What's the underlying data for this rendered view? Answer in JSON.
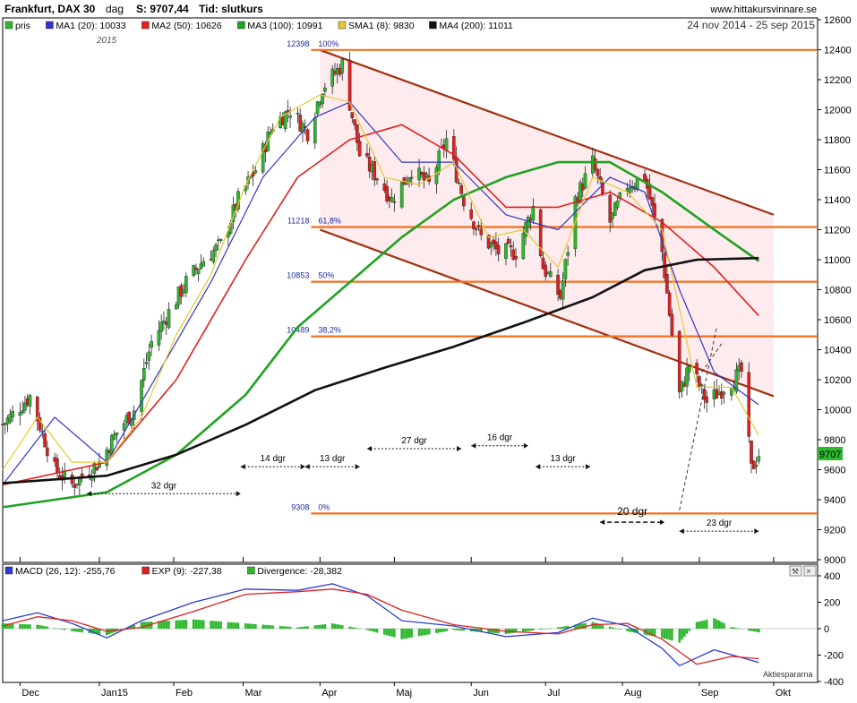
{
  "header": {
    "instrument": "Frankfurt, DAX 30",
    "interval": "dag",
    "last_label": "S: 9707,44",
    "time_label": "Tid: slutkurs",
    "site": "www.hittakursvinnare.se",
    "date_range": "24 nov 2014 - 25 sep 2015",
    "year_label": "2015",
    "price_tag": "9707",
    "footer_source": "Aktiespararna"
  },
  "colors": {
    "price_up": "#2db82d",
    "price_down": "#e02020",
    "ma1": "#3333cc",
    "ma2": "#e02020",
    "ma3": "#1fa21f",
    "sma1": "#e8c830",
    "ma4": "#111111",
    "fib": "#f07020",
    "channel": "#a03010",
    "channel_fill": "#fde8ea",
    "macd": "#2a3ccf",
    "exp": "#e02020",
    "divergence": "#2db82d"
  },
  "legend": {
    "items": [
      {
        "label": "pris",
        "color": "#2db82d"
      },
      {
        "label": "MA1 (20): 10033",
        "color": "#3333cc"
      },
      {
        "label": "MA2 (50): 10626",
        "color": "#e02020"
      },
      {
        "label": "MA3 (100): 10991",
        "color": "#1fa21f"
      },
      {
        "label": "SMA1 (8): 9830",
        "color": "#e8c830"
      },
      {
        "label": "MA4 (200): 11011",
        "color": "#111111"
      }
    ]
  },
  "chart_data": [
    {
      "type": "line",
      "title": "Frankfurt, DAX 30 - dag",
      "x_ticks": [
        "Dec",
        "Jan15",
        "Feb",
        "Mar",
        "Apr",
        "Maj",
        "Jun",
        "Jul",
        "Aug",
        "Sep",
        "Okt"
      ],
      "y_ticks": [
        9000,
        9200,
        9400,
        9600,
        9800,
        10000,
        10200,
        10400,
        10600,
        10800,
        11000,
        11200,
        11400,
        11600,
        11800,
        12000,
        12200,
        12400,
        12600
      ],
      "ylim": [
        9000,
        12600
      ],
      "x_range": [
        "2014-11-24",
        "2015-10-05"
      ],
      "series": [
        {
          "name": "pris",
          "x": [
            "2014-11-24",
            "2014-12-05",
            "2014-12-15",
            "2014-12-22",
            "2015-01-02",
            "2015-01-09",
            "2015-01-16",
            "2015-01-23",
            "2015-01-30",
            "2015-02-06",
            "2015-02-13",
            "2015-02-20",
            "2015-02-27",
            "2015-03-06",
            "2015-03-13",
            "2015-03-20",
            "2015-03-27",
            "2015-04-02",
            "2015-04-10",
            "2015-04-17",
            "2015-04-24",
            "2015-04-30",
            "2015-05-08",
            "2015-05-15",
            "2015-05-22",
            "2015-05-29",
            "2015-06-05",
            "2015-06-12",
            "2015-06-19",
            "2015-06-26",
            "2015-06-30",
            "2015-07-07",
            "2015-07-13",
            "2015-07-20",
            "2015-07-27",
            "2015-08-03",
            "2015-08-10",
            "2015-08-17",
            "2015-08-21",
            "2015-08-24",
            "2015-08-28",
            "2015-09-04",
            "2015-09-11",
            "2015-09-18",
            "2015-09-22",
            "2015-09-25"
          ],
          "values": [
            9900,
            10090,
            9600,
            9500,
            9650,
            9850,
            10000,
            10450,
            10650,
            10850,
            11000,
            11100,
            11400,
            11600,
            11900,
            12000,
            11850,
            12150,
            12300,
            11700,
            11550,
            11400,
            11600,
            11500,
            11800,
            11400,
            11150,
            11050,
            11050,
            11350,
            10950,
            10750,
            11400,
            11650,
            11250,
            11500,
            11550,
            11050,
            10500,
            10100,
            10300,
            10050,
            10150,
            10250,
            9600,
            9707
          ]
        },
        {
          "name": "MA1 (20): 10033",
          "x": [
            "2014-11-24",
            "2014-12-15",
            "2015-01-05",
            "2015-01-26",
            "2015-02-16",
            "2015-03-09",
            "2015-03-30",
            "2015-04-13",
            "2015-05-04",
            "2015-05-25",
            "2015-06-15",
            "2015-07-06",
            "2015-07-27",
            "2015-08-10",
            "2015-08-24",
            "2015-09-07",
            "2015-09-25"
          ],
          "values": [
            9500,
            9950,
            9650,
            10250,
            10850,
            11550,
            11950,
            12050,
            11650,
            11650,
            11300,
            11200,
            11550,
            11450,
            10800,
            10250,
            10033
          ]
        },
        {
          "name": "MA2 (50): 10626",
          "x": [
            "2014-11-24",
            "2015-01-05",
            "2015-02-02",
            "2015-03-02",
            "2015-03-23",
            "2015-04-13",
            "2015-05-04",
            "2015-05-25",
            "2015-06-15",
            "2015-07-06",
            "2015-07-27",
            "2015-08-17",
            "2015-09-07",
            "2015-09-25"
          ],
          "values": [
            9500,
            9650,
            10200,
            11000,
            11550,
            11800,
            11900,
            11700,
            11350,
            11350,
            11450,
            11250,
            10950,
            10626
          ]
        },
        {
          "name": "MA3 (100): 10991",
          "x": [
            "2014-11-24",
            "2015-01-05",
            "2015-02-02",
            "2015-03-02",
            "2015-03-23",
            "2015-04-13",
            "2015-05-04",
            "2015-05-25",
            "2015-06-15",
            "2015-07-06",
            "2015-07-27",
            "2015-08-17",
            "2015-09-07",
            "2015-09-25"
          ],
          "values": [
            9350,
            9450,
            9700,
            10100,
            10550,
            10850,
            11150,
            11400,
            11550,
            11650,
            11650,
            11450,
            11200,
            10991
          ]
        },
        {
          "name": "SMA1 (8): 9830",
          "x": [
            "2014-11-24",
            "2014-12-08",
            "2014-12-22",
            "2015-01-05",
            "2015-01-19",
            "2015-02-02",
            "2015-02-16",
            "2015-03-02",
            "2015-03-16",
            "2015-04-01",
            "2015-04-13",
            "2015-04-27",
            "2015-05-11",
            "2015-05-25",
            "2015-06-08",
            "2015-06-22",
            "2015-07-06",
            "2015-07-20",
            "2015-08-03",
            "2015-08-17",
            "2015-08-31",
            "2015-09-14",
            "2015-09-25"
          ],
          "values": [
            9600,
            9950,
            9650,
            9650,
            9950,
            10500,
            10900,
            11500,
            11950,
            12100,
            12050,
            11550,
            11500,
            11650,
            11150,
            11200,
            10950,
            11550,
            11450,
            11200,
            10150,
            10150,
            9830
          ]
        },
        {
          "name": "MA4 (200): 11011",
          "x": [
            "2014-11-24",
            "2015-01-05",
            "2015-02-02",
            "2015-03-02",
            "2015-03-30",
            "2015-04-27",
            "2015-05-25",
            "2015-06-22",
            "2015-07-20",
            "2015-08-10",
            "2015-08-31",
            "2015-09-25"
          ],
          "values": [
            9510,
            9560,
            9700,
            9900,
            10130,
            10280,
            10420,
            10580,
            10750,
            10930,
            11000,
            11011
          ]
        }
      ],
      "fibonacci": [
        {
          "label": "100%",
          "value": 12398
        },
        {
          "label": "61,8%",
          "value": 11218
        },
        {
          "label": "50%",
          "value": 10853
        },
        {
          "label": "38,2%",
          "value": 10489
        },
        {
          "label": "0%",
          "value": 9308
        }
      ],
      "annotations": [
        "32 dgr",
        "14 dgr",
        "13 dgr",
        "27 dgr",
        "16 dgr",
        "13 dgr",
        "20 dgr",
        "23 dgr"
      ]
    },
    {
      "type": "line",
      "legend_items": [
        "MACD (26, 12): -255,76",
        "EXP (9): -227,38",
        "Divergence: -28,382"
      ],
      "y_ticks": [
        -400,
        -200,
        0,
        200,
        400
      ],
      "ylim": [
        -400,
        400
      ],
      "series": [
        {
          "name": "MACD (26, 12): -255,76",
          "x": [
            "2014-11-24",
            "2014-12-08",
            "2014-12-22",
            "2015-01-05",
            "2015-01-19",
            "2015-02-09",
            "2015-03-02",
            "2015-03-23",
            "2015-04-06",
            "2015-04-20",
            "2015-05-04",
            "2015-05-25",
            "2015-06-15",
            "2015-07-06",
            "2015-07-20",
            "2015-08-03",
            "2015-08-17",
            "2015-08-24",
            "2015-09-07",
            "2015-09-25"
          ],
          "values": [
            60,
            120,
            40,
            -70,
            60,
            200,
            300,
            290,
            340,
            250,
            60,
            20,
            -60,
            -30,
            80,
            20,
            -150,
            -280,
            -160,
            -255.76
          ]
        },
        {
          "name": "EXP (9): -227,38",
          "x": [
            "2014-11-24",
            "2014-12-08",
            "2014-12-22",
            "2015-01-05",
            "2015-01-19",
            "2015-02-09",
            "2015-03-02",
            "2015-03-23",
            "2015-04-06",
            "2015-04-20",
            "2015-05-04",
            "2015-05-25",
            "2015-06-15",
            "2015-07-06",
            "2015-07-20",
            "2015-08-03",
            "2015-08-17",
            "2015-08-31",
            "2015-09-14",
            "2015-09-25"
          ],
          "values": [
            20,
            90,
            60,
            -20,
            10,
            130,
            260,
            280,
            300,
            260,
            140,
            30,
            -20,
            -40,
            30,
            40,
            -80,
            -270,
            -210,
            -227.38
          ]
        }
      ]
    }
  ]
}
